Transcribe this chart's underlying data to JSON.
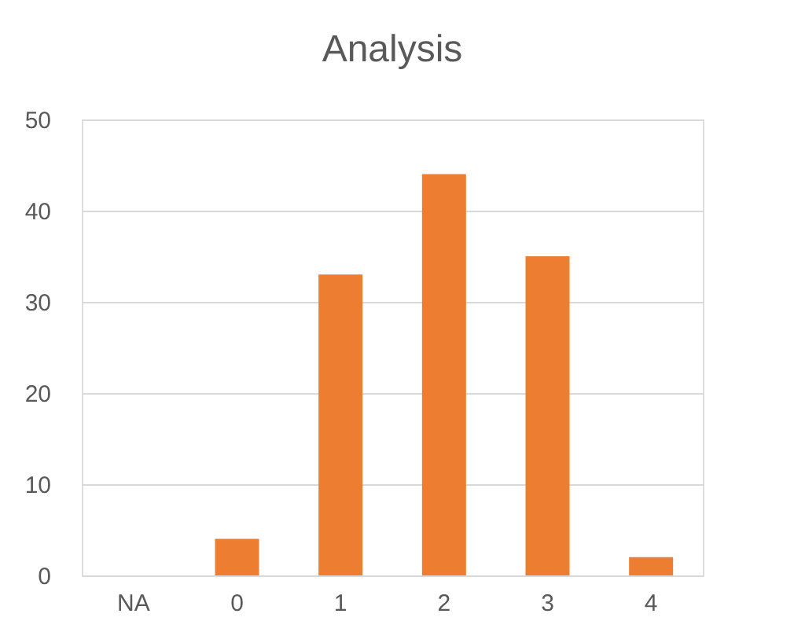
{
  "chart_data": {
    "type": "bar",
    "title": "Analysis",
    "categories": [
      "NA",
      "0",
      "1",
      "2",
      "3",
      "4"
    ],
    "values": [
      0,
      4,
      33,
      44,
      35,
      2
    ],
    "color": "#ed7d31",
    "ylim": [
      0,
      50
    ],
    "yticks": [
      0,
      10,
      20,
      30,
      40,
      50
    ],
    "grid": "y"
  }
}
